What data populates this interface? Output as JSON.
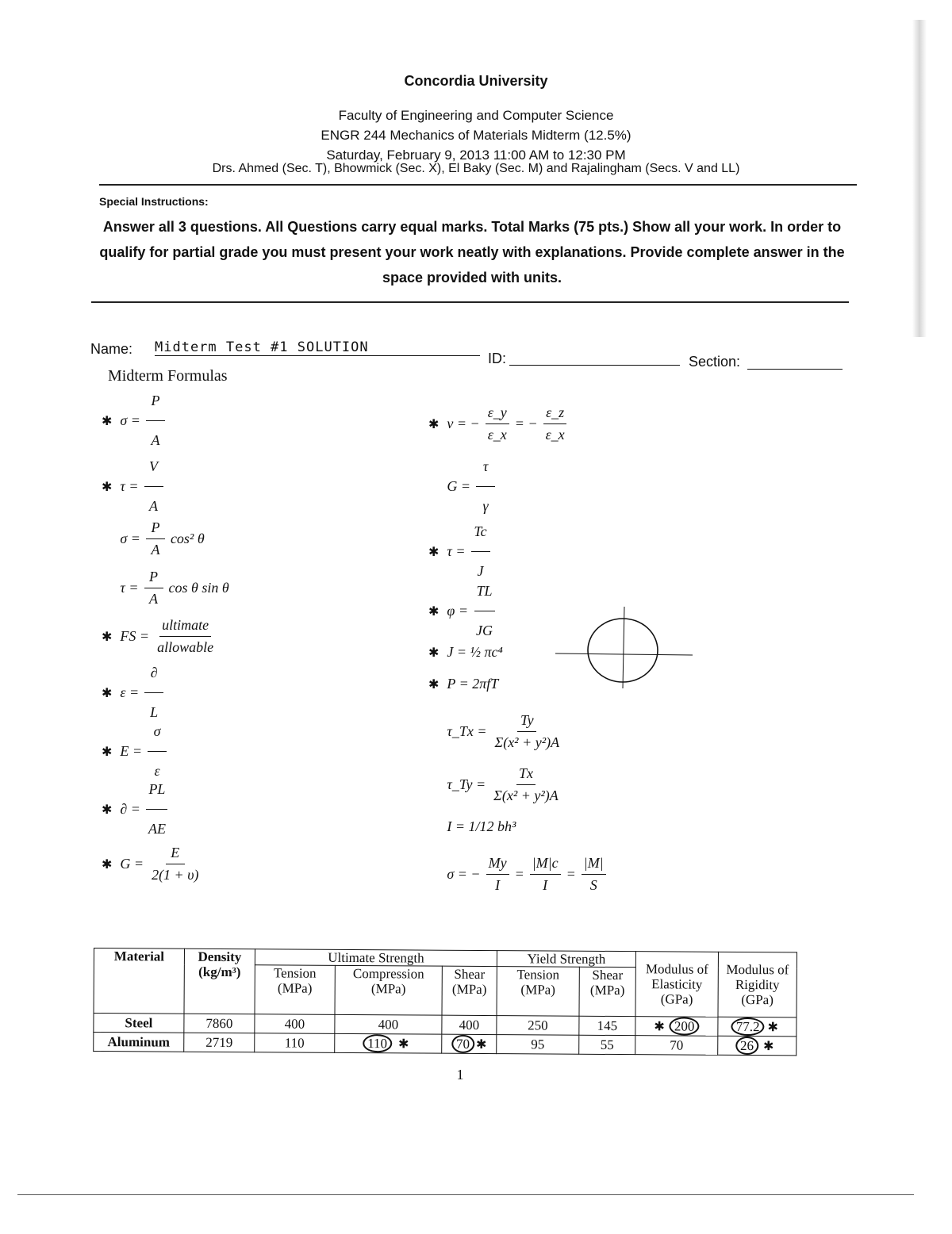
{
  "header": {
    "university": "Concordia University",
    "faculty": "Faculty of Engineering and Computer Science",
    "course": "ENGR 244 Mechanics of Materials Midterm (12.5%)",
    "date": "Saturday, February 9, 2013 11:00 AM to 12:30 PM",
    "instructors": "Drs. Ahmed (Sec. T), Bhowmick (Sec. X), El Baky (Sec. M) and Rajalingham (Secs. V and LL)"
  },
  "instructions": {
    "label": "Special Instructions:",
    "text": "Answer all 3 questions.  All Questions carry equal marks. Total Marks (75 pts.) Show all your work. In order to qualify for partial grade you must present your work neatly with explanations.  Provide complete answer in the space provided with units."
  },
  "fields": {
    "name_label": "Name:",
    "name_value": "Midterm Test #1   SOLUTION",
    "id_label": "ID:",
    "section_label": "Section:"
  },
  "formulas_title": "Midterm Formulas",
  "star_glyph": "✱",
  "formulas_left": [
    {
      "star": true,
      "parts": [
        "σ =",
        {
          "n": "P",
          "d": "A"
        }
      ]
    },
    {
      "star": true,
      "parts": [
        "τ =",
        {
          "n": "V",
          "d": "A"
        }
      ]
    },
    {
      "star": false,
      "parts": [
        "σ =",
        {
          "n": "P",
          "d": "A"
        },
        "cos² θ"
      ]
    },
    {
      "star": false,
      "parts": [
        "τ =",
        {
          "n": "P",
          "d": "A"
        },
        "cos θ sin θ"
      ]
    },
    {
      "star": true,
      "parts": [
        "FS =",
        {
          "n": "ultimate",
          "d": "allowable"
        }
      ]
    },
    {
      "star": true,
      "parts": [
        "ε =",
        {
          "n": "∂",
          "d": "L"
        }
      ]
    },
    {
      "star": true,
      "parts": [
        "E =",
        {
          "n": "σ",
          "d": "ε"
        }
      ]
    },
    {
      "star": true,
      "parts": [
        "∂ =",
        {
          "n": "PL",
          "d": "AE"
        }
      ]
    },
    {
      "star": true,
      "parts": [
        "G =",
        {
          "n": "E",
          "d": "2(1 + υ)"
        }
      ]
    }
  ],
  "formulas_right": [
    {
      "star": true,
      "parts": [
        "ν = −",
        {
          "n": "ε_y",
          "d": "ε_x"
        },
        "= −",
        {
          "n": "ε_z",
          "d": "ε_x"
        }
      ]
    },
    {
      "star": false,
      "parts": [
        "G =",
        {
          "n": "τ",
          "d": "γ"
        }
      ]
    },
    {
      "star": true,
      "parts": [
        "τ =",
        {
          "n": "Tc",
          "d": "J"
        }
      ]
    },
    {
      "star": true,
      "parts": [
        "φ =",
        {
          "n": "TL",
          "d": "JG"
        }
      ]
    },
    {
      "star": true,
      "parts": [
        "J = ½ πc⁴"
      ]
    },
    {
      "star": true,
      "parts": [
        "P = 2πfT"
      ]
    },
    {
      "star": false,
      "parts": [
        "τ_Tx =",
        {
          "n": "Ty",
          "d": "Σ(x² + y²)A"
        }
      ]
    },
    {
      "star": false,
      "parts": [
        "τ_Ty =",
        {
          "n": "Tx",
          "d": "Σ(x² + y²)A"
        }
      ]
    },
    {
      "star": false,
      "parts": [
        "I = 1/12 bh³"
      ]
    },
    {
      "star": false,
      "parts": [
        "σ = −",
        {
          "n": "My",
          "d": "I"
        },
        "=",
        {
          "n": "|M|c",
          "d": "I"
        },
        "=",
        {
          "n": "|M|",
          "d": "S"
        }
      ]
    }
  ],
  "table": {
    "headers": {
      "material": "Material",
      "density": "Density (kg/m³)",
      "ultimate": "Ultimate Strength",
      "yield": "Yield Strength",
      "elasticity": "Modulus of Elasticity (GPa)",
      "rigidity": "Modulus of Rigidity (GPa)",
      "tension": "Tension (MPa)",
      "compression": "Compression (MPa)",
      "shear": "Shear (MPa)"
    },
    "rows": [
      {
        "material": "Steel",
        "density": "7860",
        "ult_tension": "400",
        "ult_compression": "400",
        "ult_shear": "400",
        "yield_tension": "250",
        "yield_shear": "145",
        "elasticity": "200",
        "rigidity": "77.2"
      },
      {
        "material": "Aluminum",
        "density": "2719",
        "ult_tension": "110",
        "ult_compression": "110",
        "ult_shear": "70",
        "yield_tension": "95",
        "yield_shear": "55",
        "elasticity": "70",
        "rigidity": "26"
      }
    ]
  },
  "page_number": "1"
}
